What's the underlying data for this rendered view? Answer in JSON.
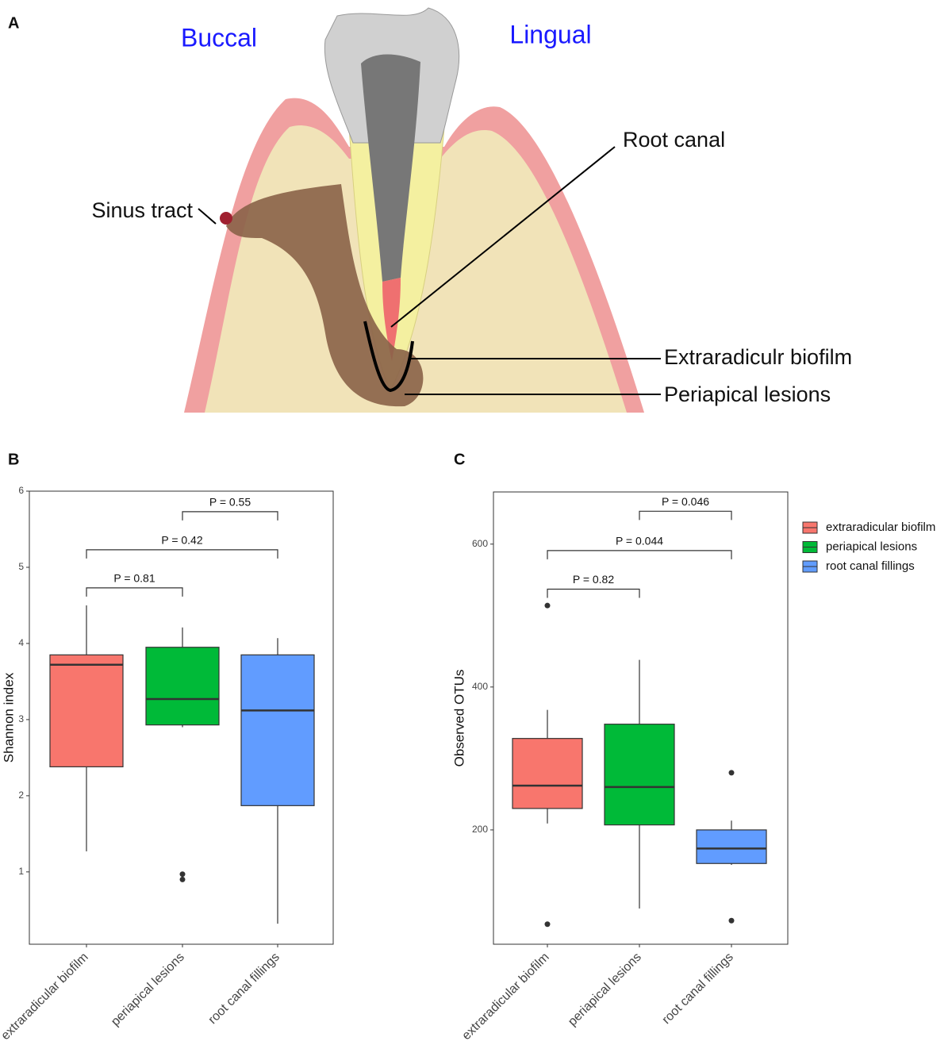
{
  "diagram": {
    "panel_label": "A",
    "side_left": "Buccal",
    "side_right": "Lingual",
    "labels": [
      "Root canal",
      "Sinus tract",
      "Extraradiculr biofilm",
      "Periapical lesions"
    ]
  },
  "chart_data": [
    {
      "type": "box",
      "title": "B",
      "ylabel": "Shannon index",
      "categories": [
        "extraradicular biofilm",
        "periapical lesions",
        "root canal fillings"
      ],
      "colors": [
        "#F8766D",
        "#00BA38",
        "#619CFF"
      ],
      "ylim": [
        0.05,
        6
      ],
      "yticks": [
        1,
        2,
        3,
        4,
        5,
        6
      ],
      "grid": false,
      "boxes": [
        {
          "min": 1.27,
          "q1": 2.38,
          "median": 3.72,
          "q3": 3.85,
          "max": 4.5,
          "outliers": []
        },
        {
          "min": 2.9,
          "q1": 2.93,
          "median": 3.27,
          "q3": 3.95,
          "max": 4.21,
          "outliers": [
            0.97,
            0.9
          ]
        },
        {
          "min": 0.32,
          "q1": 1.87,
          "median": 3.12,
          "q3": 3.85,
          "max": 4.07,
          "outliers": []
        }
      ],
      "annotations": [
        {
          "between": [
            "extraradicular biofilm",
            "periapical lesions"
          ],
          "y": 4.73,
          "label": "P = 0.81"
        },
        {
          "between": [
            "extraradicular biofilm",
            "root canal fillings"
          ],
          "y": 5.23,
          "label": "P = 0.42"
        },
        {
          "between": [
            "periapical lesions",
            "root canal fillings"
          ],
          "y": 5.73,
          "label": "P = 0.55"
        }
      ]
    },
    {
      "type": "box",
      "title": "C",
      "ylabel": "Observed OTUs",
      "categories": [
        "extraradicular biofilm",
        "periapical lesions",
        "root canal fillings"
      ],
      "colors": [
        "#F8766D",
        "#00BA38",
        "#619CFF"
      ],
      "ylim": [
        40,
        673
      ],
      "yticks": [
        200,
        400,
        600
      ],
      "grid": false,
      "legend": "right",
      "boxes": [
        {
          "min": 209,
          "q1": 230,
          "median": 262,
          "q3": 328,
          "max": 368,
          "outliers": [
            514,
            68
          ]
        },
        {
          "min": 90,
          "q1": 207,
          "median": 260,
          "q3": 348,
          "max": 438,
          "outliers": []
        },
        {
          "min": 151,
          "q1": 153,
          "median": 174,
          "q3": 200,
          "max": 213,
          "outliers": [
            280,
            73
          ]
        }
      ],
      "annotations": [
        {
          "between": [
            "extraradicular biofilm",
            "periapical lesions"
          ],
          "y": 537,
          "label": "P = 0.82"
        },
        {
          "between": [
            "extraradicular biofilm",
            "root canal fillings"
          ],
          "y": 591,
          "label": "P = 0.044"
        },
        {
          "between": [
            "periapical lesions",
            "root canal fillings"
          ],
          "y": 646,
          "label": "P = 0.046"
        }
      ]
    }
  ]
}
